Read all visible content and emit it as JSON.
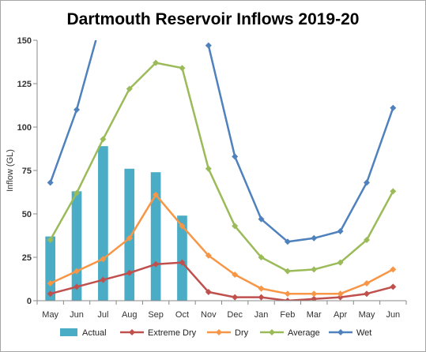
{
  "chart_data": {
    "type": "bar+line",
    "title": "Dartmouth Reservoir Inflows 2019-20",
    "ylabel": "Inflow (GL)",
    "xlabel": "",
    "ylim": [
      0,
      150
    ],
    "yticks": [
      0,
      25,
      50,
      75,
      100,
      125,
      150
    ],
    "categories": [
      "May",
      "Jun",
      "Jul",
      "Aug",
      "Sep",
      "Oct",
      "Nov",
      "Dec",
      "Jan",
      "Feb",
      "Mar",
      "Apr",
      "May",
      "Jun"
    ],
    "grid": false,
    "legend_position": "bottom",
    "series": [
      {
        "name": "Actual",
        "kind": "bar",
        "color": "#4bacc6",
        "values": [
          37,
          63,
          89,
          76,
          74,
          49,
          null,
          null,
          null,
          null,
          null,
          null,
          null,
          null
        ]
      },
      {
        "name": "Extreme Dry",
        "kind": "line",
        "color": "#c0504d",
        "marker": "diamond",
        "values": [
          4,
          8,
          12,
          16,
          21,
          22,
          5,
          2,
          2,
          0,
          1,
          2,
          4,
          8
        ]
      },
      {
        "name": "Dry",
        "kind": "line",
        "color": "#f79646",
        "marker": "diamond",
        "values": [
          10,
          17,
          24,
          36,
          61,
          43,
          26,
          15,
          7,
          4,
          4,
          4,
          10,
          18
        ]
      },
      {
        "name": "Average",
        "kind": "line",
        "color": "#9bbb59",
        "marker": "diamond",
        "values": [
          35,
          62,
          93,
          122,
          137,
          134,
          76,
          43,
          25,
          17,
          18,
          22,
          35,
          63
        ]
      },
      {
        "name": "Wet",
        "kind": "line",
        "color": "#4f81bd",
        "marker": "diamond",
        "values": [
          68,
          110,
          165,
          null,
          null,
          null,
          147,
          83,
          47,
          34,
          36,
          40,
          68,
          111
        ]
      }
    ]
  }
}
